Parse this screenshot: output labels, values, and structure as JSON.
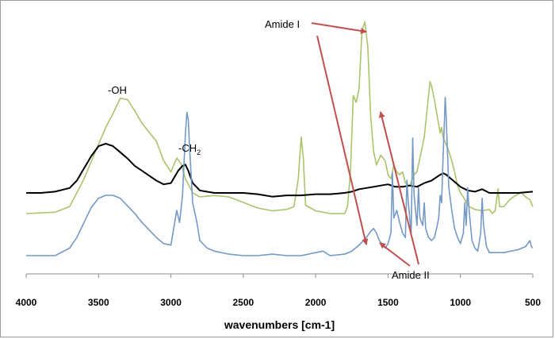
{
  "chart_data": {
    "type": "line",
    "title": "",
    "xlabel": "wavenumbers [cm-1]",
    "ylabel": "",
    "xlim": [
      4000,
      500
    ],
    "x_reversed": true,
    "xticks": [
      "4000",
      "3500",
      "3000",
      "2500",
      "2000",
      "1500",
      "1000",
      "500"
    ],
    "grid": false,
    "legend": "none",
    "series": [
      {
        "name": "green spectrum",
        "color": "#a9c46a",
        "points": [
          [
            4000,
            0.0
          ],
          [
            3800,
            0.01
          ],
          [
            3700,
            0.05
          ],
          [
            3600,
            0.25
          ],
          [
            3500,
            0.5
          ],
          [
            3450,
            0.62
          ],
          [
            3400,
            0.72
          ],
          [
            3350,
            0.83
          ],
          [
            3300,
            0.82
          ],
          [
            3250,
            0.74
          ],
          [
            3200,
            0.65
          ],
          [
            3100,
            0.52
          ],
          [
            3050,
            0.38
          ],
          [
            3000,
            0.3
          ],
          [
            2960,
            0.4
          ],
          [
            2930,
            0.36
          ],
          [
            2900,
            0.25
          ],
          [
            2850,
            0.15
          ],
          [
            2800,
            0.12
          ],
          [
            2700,
            0.13
          ],
          [
            2600,
            0.12
          ],
          [
            2500,
            0.08
          ],
          [
            2400,
            0.04
          ],
          [
            2300,
            0.02
          ],
          [
            2200,
            0.03
          ],
          [
            2150,
            0.05
          ],
          [
            2120,
            0.25
          ],
          [
            2100,
            0.55
          ],
          [
            2085,
            0.4
          ],
          [
            2070,
            0.06
          ],
          [
            2000,
            0.02
          ],
          [
            1900,
            0.0
          ],
          [
            1800,
            0.0
          ],
          [
            1780,
            0.05
          ],
          [
            1760,
            0.3
          ],
          [
            1740,
            0.85
          ],
          [
            1720,
            0.8
          ],
          [
            1700,
            0.9
          ],
          [
            1680,
            1.32
          ],
          [
            1660,
            1.38
          ],
          [
            1640,
            1.2
          ],
          [
            1620,
            0.7
          ],
          [
            1600,
            0.45
          ],
          [
            1580,
            0.35
          ],
          [
            1550,
            0.42
          ],
          [
            1520,
            0.38
          ],
          [
            1500,
            0.28
          ],
          [
            1480,
            0.25
          ],
          [
            1460,
            0.35
          ],
          [
            1440,
            0.3
          ],
          [
            1420,
            0.28
          ],
          [
            1400,
            0.3
          ],
          [
            1380,
            0.22
          ],
          [
            1350,
            0.2
          ],
          [
            1320,
            0.28
          ],
          [
            1300,
            0.3
          ],
          [
            1280,
            0.4
          ],
          [
            1250,
            0.55
          ],
          [
            1230,
            0.75
          ],
          [
            1210,
            0.95
          ],
          [
            1200,
            0.92
          ],
          [
            1180,
            0.82
          ],
          [
            1160,
            0.7
          ],
          [
            1140,
            0.58
          ],
          [
            1130,
            0.62
          ],
          [
            1120,
            0.55
          ],
          [
            1100,
            0.5
          ],
          [
            1080,
            0.45
          ],
          [
            1060,
            0.38
          ],
          [
            1040,
            0.3
          ],
          [
            1020,
            0.2
          ],
          [
            1000,
            0.15
          ],
          [
            980,
            0.12
          ],
          [
            960,
            0.08
          ],
          [
            940,
            0.05
          ],
          [
            900,
            0.03
          ],
          [
            850,
            0.02
          ],
          [
            800,
            0.03
          ],
          [
            780,
            0.0
          ],
          [
            760,
            0.02
          ],
          [
            740,
            0.18
          ],
          [
            730,
            0.05
          ],
          [
            700,
            0.05
          ],
          [
            660,
            0.1
          ],
          [
            620,
            0.13
          ],
          [
            580,
            0.15
          ],
          [
            550,
            0.12
          ],
          [
            520,
            0.1
          ],
          [
            500,
            0.05
          ]
        ]
      },
      {
        "name": "black spectrum",
        "color": "#000000",
        "points": [
          [
            4000,
            0.0
          ],
          [
            3900,
            0.0
          ],
          [
            3800,
            0.01
          ],
          [
            3700,
            0.04
          ],
          [
            3650,
            0.1
          ],
          [
            3600,
            0.2
          ],
          [
            3550,
            0.3
          ],
          [
            3500,
            0.38
          ],
          [
            3450,
            0.4
          ],
          [
            3400,
            0.38
          ],
          [
            3350,
            0.33
          ],
          [
            3300,
            0.28
          ],
          [
            3250,
            0.22
          ],
          [
            3200,
            0.18
          ],
          [
            3150,
            0.14
          ],
          [
            3100,
            0.1
          ],
          [
            3050,
            0.07
          ],
          [
            3000,
            0.08
          ],
          [
            2950,
            0.18
          ],
          [
            2920,
            0.22
          ],
          [
            2900,
            0.23
          ],
          [
            2880,
            0.18
          ],
          [
            2850,
            0.08
          ],
          [
            2800,
            0.02
          ],
          [
            2700,
            0.0
          ],
          [
            2500,
            0.0
          ],
          [
            2400,
            -0.01
          ],
          [
            2300,
            -0.03
          ],
          [
            2200,
            -0.02
          ],
          [
            2100,
            -0.02
          ],
          [
            2000,
            -0.01
          ],
          [
            1900,
            -0.01
          ],
          [
            1800,
            0.0
          ],
          [
            1750,
            0.01
          ],
          [
            1700,
            0.03
          ],
          [
            1650,
            0.04
          ],
          [
            1600,
            0.05
          ],
          [
            1550,
            0.06
          ],
          [
            1500,
            0.07
          ],
          [
            1450,
            0.05
          ],
          [
            1400,
            0.05
          ],
          [
            1350,
            0.06
          ],
          [
            1300,
            0.05
          ],
          [
            1250,
            0.08
          ],
          [
            1200,
            0.1
          ],
          [
            1150,
            0.14
          ],
          [
            1120,
            0.16
          ],
          [
            1100,
            0.15
          ],
          [
            1050,
            0.1
          ],
          [
            1000,
            0.05
          ],
          [
            950,
            0.02
          ],
          [
            900,
            0.01
          ],
          [
            850,
            0.03
          ],
          [
            800,
            0.0
          ],
          [
            700,
            0.0
          ],
          [
            600,
            0.0
          ],
          [
            500,
            0.01
          ]
        ]
      },
      {
        "name": "blue spectrum",
        "color": "#7399c6",
        "points": [
          [
            4000,
            0.0
          ],
          [
            3800,
            0.0
          ],
          [
            3700,
            0.05
          ],
          [
            3650,
            0.12
          ],
          [
            3600,
            0.22
          ],
          [
            3550,
            0.32
          ],
          [
            3500,
            0.38
          ],
          [
            3450,
            0.4
          ],
          [
            3400,
            0.4
          ],
          [
            3350,
            0.38
          ],
          [
            3300,
            0.33
          ],
          [
            3250,
            0.28
          ],
          [
            3200,
            0.22
          ],
          [
            3150,
            0.17
          ],
          [
            3100,
            0.12
          ],
          [
            3050,
            0.08
          ],
          [
            3000,
            0.07
          ],
          [
            2960,
            0.3
          ],
          [
            2940,
            0.22
          ],
          [
            2920,
            0.4
          ],
          [
            2900,
            0.8
          ],
          [
            2890,
            0.95
          ],
          [
            2880,
            0.9
          ],
          [
            2870,
            0.7
          ],
          [
            2850,
            0.35
          ],
          [
            2820,
            0.22
          ],
          [
            2800,
            0.1
          ],
          [
            2750,
            0.05
          ],
          [
            2700,
            0.03
          ],
          [
            2600,
            0.01
          ],
          [
            2500,
            0.0
          ],
          [
            2400,
            0.0
          ],
          [
            2300,
            0.01
          ],
          [
            2200,
            0.0
          ],
          [
            2100,
            0.0
          ],
          [
            2000,
            0.02
          ],
          [
            1950,
            0.03
          ],
          [
            1900,
            0.0
          ],
          [
            1800,
            0.01
          ],
          [
            1750,
            0.03
          ],
          [
            1700,
            0.07
          ],
          [
            1650,
            0.12
          ],
          [
            1620,
            0.16
          ],
          [
            1600,
            0.18
          ],
          [
            1580,
            0.15
          ],
          [
            1560,
            0.1
          ],
          [
            1520,
            0.05
          ],
          [
            1500,
            0.08
          ],
          [
            1480,
            0.15
          ],
          [
            1470,
            0.55
          ],
          [
            1460,
            0.25
          ],
          [
            1440,
            0.3
          ],
          [
            1420,
            0.22
          ],
          [
            1400,
            0.15
          ],
          [
            1380,
            0.12
          ],
          [
            1370,
            0.5
          ],
          [
            1360,
            0.35
          ],
          [
            1340,
            0.15
          ],
          [
            1330,
            0.78
          ],
          [
            1320,
            0.4
          ],
          [
            1300,
            0.2
          ],
          [
            1290,
            0.45
          ],
          [
            1280,
            0.25
          ],
          [
            1260,
            0.2
          ],
          [
            1250,
            0.35
          ],
          [
            1240,
            0.18
          ],
          [
            1220,
            0.12
          ],
          [
            1200,
            0.1
          ],
          [
            1180,
            0.12
          ],
          [
            1160,
            0.2
          ],
          [
            1150,
            0.25
          ],
          [
            1140,
            0.4
          ],
          [
            1130,
            0.35
          ],
          [
            1120,
            0.65
          ],
          [
            1110,
            0.9
          ],
          [
            1105,
            1.05
          ],
          [
            1100,
            0.95
          ],
          [
            1090,
            0.7
          ],
          [
            1080,
            0.45
          ],
          [
            1060,
            0.3
          ],
          [
            1040,
            0.18
          ],
          [
            1020,
            0.12
          ],
          [
            1000,
            0.08
          ],
          [
            980,
            0.15
          ],
          [
            970,
            0.35
          ],
          [
            960,
            0.2
          ],
          [
            950,
            0.45
          ],
          [
            940,
            0.3
          ],
          [
            920,
            0.1
          ],
          [
            900,
            0.05
          ],
          [
            880,
            0.03
          ],
          [
            860,
            0.15
          ],
          [
            850,
            0.38
          ],
          [
            840,
            0.2
          ],
          [
            820,
            0.06
          ],
          [
            800,
            0.02
          ],
          [
            700,
            0.02
          ],
          [
            600,
            0.04
          ],
          [
            550,
            0.06
          ],
          [
            520,
            0.1
          ],
          [
            510,
            0.06
          ],
          [
            500,
            0.05
          ]
        ]
      }
    ],
    "annotations": [
      {
        "id": "oh",
        "text": "-OH"
      },
      {
        "id": "ch2",
        "text": "-CH",
        "sub": "2"
      },
      {
        "id": "amide1",
        "text": "Amide I"
      },
      {
        "id": "amide2",
        "text": "Amide II"
      }
    ],
    "arrow_color": "#c0504d"
  }
}
